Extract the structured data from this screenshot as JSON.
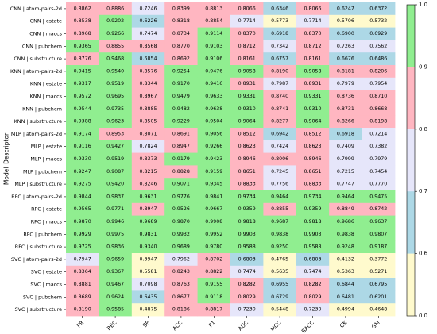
{
  "chart_data": {
    "type": "heatmap",
    "ylabel": "Model_Descriptor",
    "xlabel": "",
    "columns": [
      "PR",
      "REC",
      "SP",
      "ACC",
      "F1",
      "AUC",
      "MCC",
      "BACC",
      "CK",
      "GM"
    ],
    "rows": [
      "CNN | atom-pairs-2d",
      "CNN | estate",
      "CNN | maccs",
      "CNN | pubchem",
      "CNN | substructure",
      "KNN | atom-pairs-2d",
      "KNN | estate",
      "KNN | maccs",
      "KNN | pubchem",
      "KNN | substructure",
      "MLP | atom-pairs-2d",
      "MLP | estate",
      "MLP | maccs",
      "MLP | pubchem",
      "MLP | substructure",
      "RFC | atom-pairs-2d",
      "RFC | estate",
      "RFC | maccs",
      "RFC | pubchem",
      "RFC | substructure",
      "SVC | atom-pairs-2d",
      "SVC | estate",
      "SVC | maccs",
      "SVC | pubchem",
      "SVC | substructure"
    ],
    "values": [
      [
        0.8862,
        0.8886,
        0.7246,
        0.8399,
        0.8813,
        0.8066,
        0.6346,
        0.8066,
        0.6247,
        0.6372
      ],
      [
        0.8538,
        0.9202,
        0.6226,
        0.8318,
        0.8854,
        0.7714,
        0.5773,
        0.7714,
        0.5706,
        0.5732
      ],
      [
        0.8968,
        0.9266,
        0.7474,
        0.8734,
        0.9114,
        0.837,
        0.6918,
        0.837,
        0.69,
        0.6929
      ],
      [
        0.9365,
        0.8855,
        0.8568,
        0.877,
        0.9103,
        0.8712,
        0.7342,
        0.8712,
        0.7263,
        0.7562
      ],
      [
        0.8776,
        0.9468,
        0.6854,
        0.8692,
        0.9106,
        0.8161,
        0.6757,
        0.8161,
        0.6676,
        0.6486
      ],
      [
        0.9415,
        0.954,
        0.8576,
        0.9254,
        0.9476,
        0.9058,
        0.819,
        0.9058,
        0.8181,
        0.8206
      ],
      [
        0.9317,
        0.9519,
        0.8344,
        0.917,
        0.9416,
        0.8931,
        0.7987,
        0.8931,
        0.7979,
        0.7954
      ],
      [
        0.9572,
        0.9695,
        0.8967,
        0.9479,
        0.9633,
        0.9331,
        0.874,
        0.9331,
        0.8736,
        0.871
      ],
      [
        0.9544,
        0.9735,
        0.8885,
        0.9482,
        0.9638,
        0.931,
        0.8741,
        0.931,
        0.8731,
        0.8668
      ],
      [
        0.9388,
        0.9623,
        0.8505,
        0.9229,
        0.9504,
        0.9064,
        0.8277,
        0.9064,
        0.8266,
        0.8198
      ],
      [
        0.9174,
        0.8953,
        0.8071,
        0.8691,
        0.9056,
        0.8512,
        0.6942,
        0.8512,
        0.6918,
        0.7214
      ],
      [
        0.9116,
        0.9427,
        0.7824,
        0.8947,
        0.9266,
        0.8623,
        0.7424,
        0.8623,
        0.7409,
        0.7382
      ],
      [
        0.933,
        0.9519,
        0.8373,
        0.9179,
        0.9423,
        0.8946,
        0.8006,
        0.8946,
        0.7999,
        0.7979
      ],
      [
        0.9247,
        0.9087,
        0.8215,
        0.8828,
        0.9159,
        0.8651,
        0.7245,
        0.8651,
        0.7215,
        0.7454
      ],
      [
        0.9275,
        0.942,
        0.8246,
        0.9071,
        0.9345,
        0.8833,
        0.7756,
        0.8833,
        0.7747,
        0.777
      ],
      [
        0.9844,
        0.9837,
        0.9631,
        0.9776,
        0.9841,
        0.9734,
        0.9464,
        0.9734,
        0.9464,
        0.9475
      ],
      [
        0.9565,
        0.9771,
        0.8947,
        0.9526,
        0.9667,
        0.9359,
        0.8855,
        0.9359,
        0.8849,
        0.8742
      ],
      [
        0.987,
        0.9946,
        0.9689,
        0.987,
        0.9908,
        0.9818,
        0.9687,
        0.9818,
        0.9686,
        0.9637
      ],
      [
        0.9929,
        0.9975,
        0.9831,
        0.9932,
        0.9952,
        0.9903,
        0.9838,
        0.9903,
        0.9838,
        0.9807
      ],
      [
        0.9725,
        0.9836,
        0.934,
        0.9689,
        0.978,
        0.9588,
        0.925,
        0.9588,
        0.9248,
        0.9187
      ],
      [
        0.7947,
        0.9659,
        0.3947,
        0.7962,
        0.8702,
        0.6803,
        0.4765,
        0.6803,
        0.4132,
        0.3772
      ],
      [
        0.8364,
        0.9367,
        0.5581,
        0.8243,
        0.8822,
        0.7474,
        0.5635,
        0.7474,
        0.5363,
        0.5271
      ],
      [
        0.8881,
        0.9467,
        0.7098,
        0.8763,
        0.9155,
        0.8282,
        0.6955,
        0.8282,
        0.6844,
        0.6795
      ],
      [
        0.8689,
        0.9624,
        0.6435,
        0.8677,
        0.9118,
        0.8029,
        0.6729,
        0.8029,
        0.6481,
        0.6201
      ],
      [
        0.819,
        0.9585,
        0.4875,
        0.8186,
        0.8817,
        0.723,
        0.5448,
        0.723,
        0.4994,
        0.4648
      ]
    ],
    "colorbar": {
      "ticks": [
        "0.0",
        "0.6",
        "0.7",
        "0.8",
        "0.9",
        "1.0"
      ],
      "bins": [
        {
          "from": 0.0,
          "to": 0.6,
          "color": "#fffacd"
        },
        {
          "from": 0.6,
          "to": 0.7,
          "color": "#add8e6"
        },
        {
          "from": 0.7,
          "to": 0.8,
          "color": "#e6e6fa"
        },
        {
          "from": 0.8,
          "to": 0.9,
          "color": "#ffb6c1"
        },
        {
          "from": 0.9,
          "to": 1.0,
          "color": "#90ee90"
        }
      ]
    },
    "legend_position": "right",
    "grid": false
  }
}
